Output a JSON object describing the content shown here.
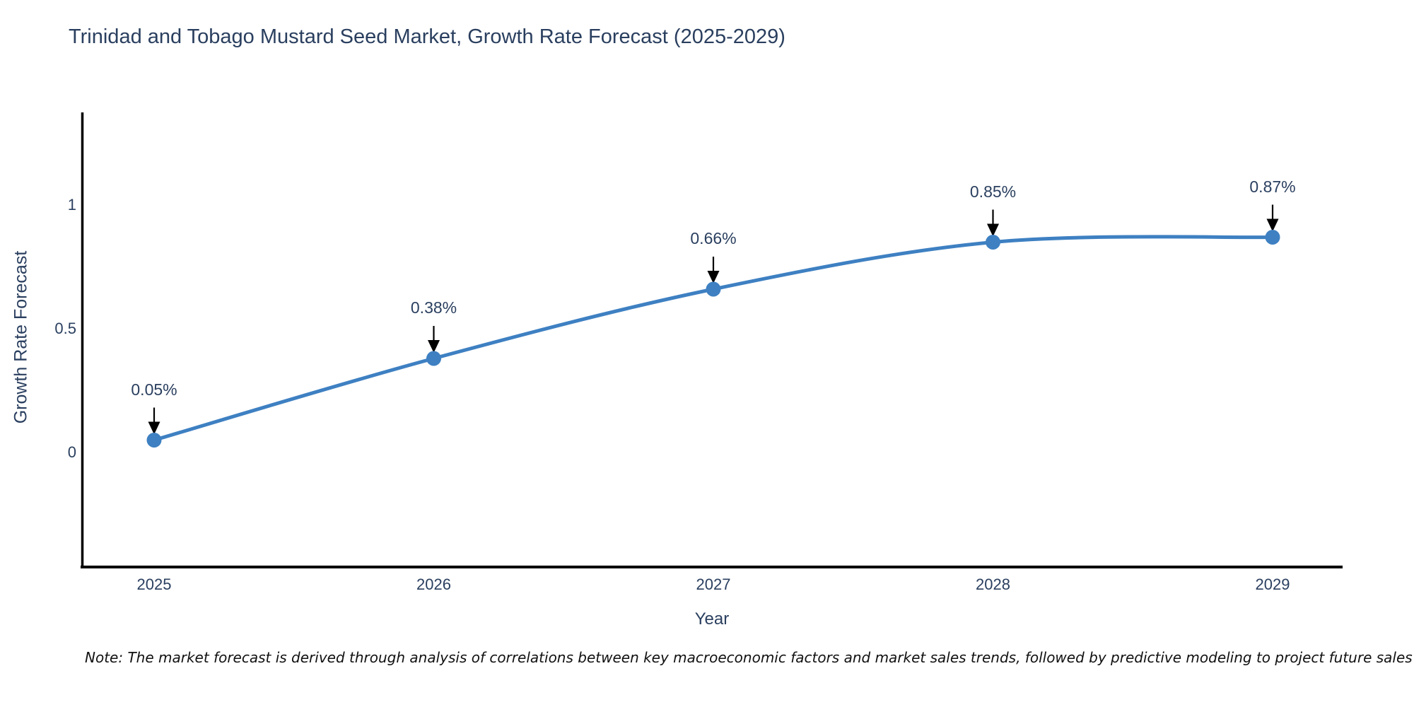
{
  "chart_data": {
    "type": "line",
    "title": "Trinidad and Tobago Mustard Seed Market, Growth Rate Forecast (2025-2029)",
    "xlabel": "Year",
    "ylabel": "Growth Rate Forecast",
    "categories": [
      "2025",
      "2026",
      "2027",
      "2028",
      "2029"
    ],
    "series": [
      {
        "name": "Growth Rate Forecast",
        "values": [
          0.05,
          0.38,
          0.66,
          0.85,
          0.87
        ],
        "point_labels": [
          "0.05%",
          "0.38%",
          "0.66%",
          "0.85%",
          "0.87%"
        ]
      }
    ],
    "yticks": [
      0,
      0.5,
      1
    ],
    "ytick_labels": [
      "0",
      "0.5",
      "1"
    ],
    "ylim": [
      -0.46,
      1.37
    ],
    "line_shape": "spline",
    "grid": false,
    "legend_position": "none",
    "colors": {
      "line": "#3e80c2",
      "marker": "#3e80c2",
      "axis": "#000000",
      "arrow": "#000000",
      "text": "#2a3f5f"
    }
  },
  "note": {
    "text": "Note: The market forecast is derived through analysis of correlations between key macroeconomic factors and market sales trends, followed by predictive modeling to project future sales"
  }
}
